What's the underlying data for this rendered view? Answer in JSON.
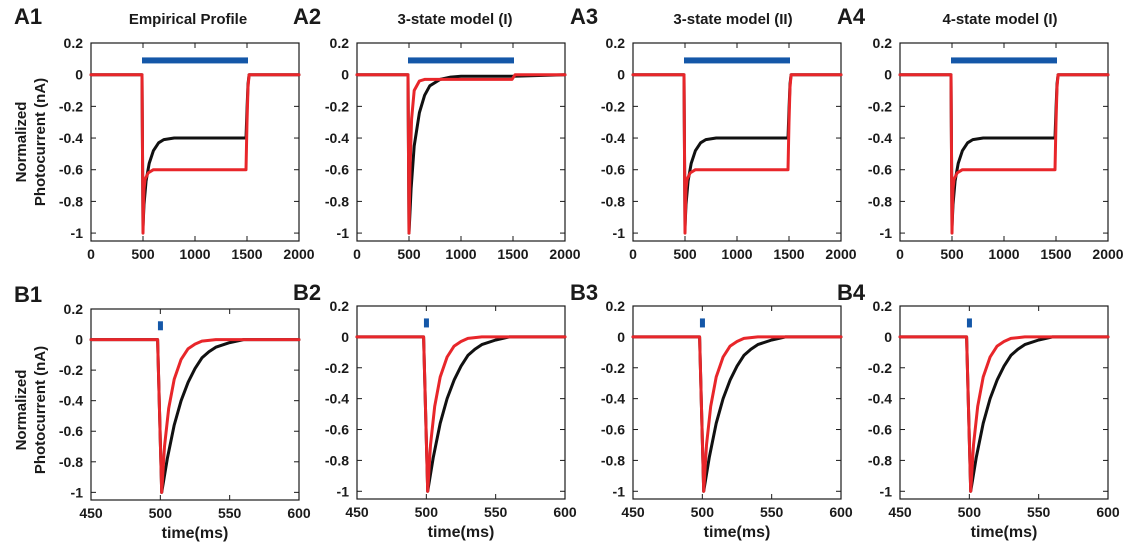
{
  "ylabel": "Normalized\nPhotocurrent (nA)",
  "xlabel": "time(ms)",
  "colors": {
    "black_trace": "#111111",
    "red_trace": "#e8262a",
    "light_pulse": "#1457a8"
  },
  "chart_data": [
    {
      "type": "line",
      "label": "A1",
      "title": "Empirical Profile",
      "xlim": [
        0,
        2000
      ],
      "ylim": [
        -1.05,
        0.2
      ],
      "xticks": [
        0,
        500,
        1000,
        1500,
        2000
      ],
      "yticks": [
        0.2,
        0,
        -0.2,
        -0.4,
        -0.6,
        -0.8,
        -1
      ],
      "light_pulse": {
        "start": 500,
        "end": 1500,
        "y": 0.09
      },
      "series": [
        {
          "color": "black",
          "x": [
            0,
            490,
            500,
            510,
            530,
            560,
            600,
            650,
            700,
            800,
            1000,
            1490,
            1500,
            1510,
            1520,
            2000
          ],
          "y": [
            0,
            0,
            -0.96,
            -0.82,
            -0.67,
            -0.56,
            -0.48,
            -0.43,
            -0.41,
            -0.4,
            -0.4,
            -0.4,
            -0.22,
            -0.06,
            0,
            0
          ]
        },
        {
          "color": "red",
          "x": [
            0,
            490,
            500,
            505,
            510,
            520,
            550,
            600,
            650,
            800,
            1490,
            1500,
            1510,
            1520,
            2000
          ],
          "y": [
            0,
            0,
            -1,
            -0.85,
            -0.72,
            -0.66,
            -0.62,
            -0.6,
            -0.6,
            -0.6,
            -0.6,
            -0.3,
            -0.08,
            0,
            0
          ]
        }
      ]
    },
    {
      "type": "line",
      "label": "A2",
      "title": "3-state model (I)",
      "xlim": [
        0,
        2000
      ],
      "ylim": [
        -1.05,
        0.2
      ],
      "xticks": [
        0,
        500,
        1000,
        1500,
        2000
      ],
      "yticks": [
        0.2,
        0,
        -0.2,
        -0.4,
        -0.6,
        -0.8,
        -1
      ],
      "light_pulse": {
        "start": 500,
        "end": 1500,
        "y": 0.09
      },
      "series": [
        {
          "color": "black",
          "x": [
            0,
            490,
            500,
            520,
            550,
            600,
            650,
            700,
            800,
            900,
            1000,
            1500,
            2000
          ],
          "y": [
            0,
            0,
            -1,
            -0.72,
            -0.45,
            -0.24,
            -0.13,
            -0.07,
            -0.03,
            -0.015,
            -0.01,
            -0.01,
            0
          ]
        },
        {
          "color": "red",
          "x": [
            0,
            490,
            500,
            510,
            525,
            550,
            600,
            650,
            700,
            1490,
            1510,
            1520,
            2000
          ],
          "y": [
            0,
            0,
            -1,
            -0.6,
            -0.28,
            -0.1,
            -0.04,
            -0.03,
            -0.03,
            -0.03,
            -0.01,
            0,
            0
          ]
        }
      ]
    },
    {
      "type": "line",
      "label": "A3",
      "title": "3-state model (II)",
      "xlim": [
        0,
        2000
      ],
      "ylim": [
        -1.05,
        0.2
      ],
      "xticks": [
        0,
        500,
        1000,
        1500,
        2000
      ],
      "yticks": [
        0.2,
        0,
        -0.2,
        -0.4,
        -0.6,
        -0.8,
        -1
      ],
      "light_pulse": {
        "start": 500,
        "end": 1500,
        "y": 0.09
      },
      "series": [
        {
          "color": "black",
          "x": [
            0,
            490,
            500,
            510,
            530,
            560,
            600,
            650,
            700,
            800,
            1000,
            1490,
            1500,
            1510,
            1520,
            2000
          ],
          "y": [
            0,
            0,
            -0.96,
            -0.82,
            -0.67,
            -0.56,
            -0.48,
            -0.43,
            -0.41,
            -0.4,
            -0.4,
            -0.4,
            -0.22,
            -0.06,
            0,
            0
          ]
        },
        {
          "color": "red",
          "x": [
            0,
            490,
            500,
            505,
            510,
            520,
            550,
            600,
            650,
            800,
            1490,
            1500,
            1510,
            1520,
            2000
          ],
          "y": [
            0,
            0,
            -1,
            -0.85,
            -0.72,
            -0.66,
            -0.62,
            -0.6,
            -0.6,
            -0.6,
            -0.6,
            -0.3,
            -0.08,
            0,
            0
          ]
        }
      ]
    },
    {
      "type": "line",
      "label": "A4",
      "title": "4-state model (I)",
      "xlim": [
        0,
        2000
      ],
      "ylim": [
        -1.05,
        0.2
      ],
      "xticks": [
        0,
        500,
        1000,
        1500,
        2000
      ],
      "yticks": [
        0.2,
        0,
        -0.2,
        -0.4,
        -0.6,
        -0.8,
        -1
      ],
      "light_pulse": {
        "start": 500,
        "end": 1500,
        "y": 0.09
      },
      "series": [
        {
          "color": "black",
          "x": [
            0,
            490,
            500,
            510,
            530,
            560,
            600,
            650,
            700,
            800,
            1000,
            1490,
            1500,
            1510,
            1520,
            2000
          ],
          "y": [
            0,
            0,
            -0.96,
            -0.82,
            -0.67,
            -0.56,
            -0.48,
            -0.43,
            -0.41,
            -0.4,
            -0.4,
            -0.4,
            -0.22,
            -0.06,
            0,
            0
          ]
        },
        {
          "color": "red",
          "x": [
            0,
            490,
            500,
            505,
            510,
            520,
            550,
            600,
            650,
            800,
            1490,
            1500,
            1510,
            1520,
            2000
          ],
          "y": [
            0,
            0,
            -1,
            -0.85,
            -0.72,
            -0.66,
            -0.62,
            -0.6,
            -0.6,
            -0.6,
            -0.6,
            -0.3,
            -0.08,
            0,
            0
          ]
        }
      ]
    },
    {
      "type": "line",
      "label": "B1",
      "title": "",
      "xlim": [
        450,
        600
      ],
      "ylim": [
        -1.05,
        0.2
      ],
      "xticks": [
        450,
        500,
        550,
        600
      ],
      "yticks": [
        0.2,
        0,
        -0.2,
        -0.4,
        -0.6,
        -0.8,
        -1
      ],
      "light_pulse": {
        "start": 499,
        "end": 501,
        "y": 0.1
      },
      "series": [
        {
          "color": "black",
          "x": [
            450,
            498,
            501,
            505,
            510,
            515,
            520,
            525,
            530,
            535,
            540,
            550,
            560,
            600
          ],
          "y": [
            0,
            0,
            -1,
            -0.78,
            -0.56,
            -0.4,
            -0.28,
            -0.19,
            -0.12,
            -0.08,
            -0.05,
            -0.02,
            0,
            0
          ]
        },
        {
          "color": "red",
          "x": [
            450,
            498,
            501,
            503,
            506,
            510,
            515,
            520,
            525,
            530,
            540,
            600
          ],
          "y": [
            0,
            0,
            -1,
            -0.7,
            -0.45,
            -0.26,
            -0.13,
            -0.06,
            -0.03,
            -0.01,
            0,
            0
          ]
        }
      ]
    },
    {
      "type": "line",
      "label": "B2",
      "title": "",
      "xlim": [
        450,
        600
      ],
      "ylim": [
        -1.05,
        0.2
      ],
      "xticks": [
        450,
        500,
        550,
        600
      ],
      "yticks": [
        0.2,
        0,
        -0.2,
        -0.4,
        -0.6,
        -0.8,
        -1
      ],
      "light_pulse": {
        "start": 499,
        "end": 501,
        "y": 0.1
      },
      "series": [
        {
          "color": "black",
          "x": [
            450,
            498,
            501,
            505,
            510,
            515,
            520,
            525,
            530,
            535,
            540,
            550,
            560,
            600
          ],
          "y": [
            0,
            0,
            -1,
            -0.78,
            -0.56,
            -0.4,
            -0.28,
            -0.19,
            -0.12,
            -0.08,
            -0.05,
            -0.02,
            0,
            0
          ]
        },
        {
          "color": "red",
          "x": [
            450,
            498,
            501,
            503,
            506,
            510,
            515,
            520,
            525,
            530,
            540,
            600
          ],
          "y": [
            0,
            0,
            -1,
            -0.7,
            -0.45,
            -0.26,
            -0.13,
            -0.06,
            -0.03,
            -0.01,
            0,
            0
          ]
        }
      ]
    },
    {
      "type": "line",
      "label": "B3",
      "title": "",
      "xlim": [
        450,
        600
      ],
      "ylim": [
        -1.05,
        0.2
      ],
      "xticks": [
        450,
        500,
        550,
        600
      ],
      "yticks": [
        0.2,
        0,
        -0.2,
        -0.4,
        -0.6,
        -0.8,
        -1
      ],
      "light_pulse": {
        "start": 499,
        "end": 501,
        "y": 0.1
      },
      "series": [
        {
          "color": "black",
          "x": [
            450,
            498,
            501,
            505,
            510,
            515,
            520,
            525,
            530,
            535,
            540,
            550,
            560,
            600
          ],
          "y": [
            0,
            0,
            -1,
            -0.78,
            -0.56,
            -0.4,
            -0.28,
            -0.19,
            -0.12,
            -0.08,
            -0.05,
            -0.02,
            0,
            0
          ]
        },
        {
          "color": "red",
          "x": [
            450,
            498,
            501,
            503,
            506,
            510,
            515,
            520,
            525,
            530,
            540,
            600
          ],
          "y": [
            0,
            0,
            -1,
            -0.7,
            -0.45,
            -0.26,
            -0.13,
            -0.06,
            -0.03,
            -0.01,
            0,
            0
          ]
        }
      ]
    },
    {
      "type": "line",
      "label": "B4",
      "title": "",
      "xlim": [
        450,
        600
      ],
      "ylim": [
        -1.05,
        0.2
      ],
      "xticks": [
        450,
        500,
        550,
        600
      ],
      "yticks": [
        0.2,
        0,
        -0.2,
        -0.4,
        -0.6,
        -0.8,
        -1
      ],
      "light_pulse": {
        "start": 499,
        "end": 501,
        "y": 0.1
      },
      "series": [
        {
          "color": "black",
          "x": [
            450,
            498,
            501,
            505,
            510,
            515,
            520,
            525,
            530,
            535,
            540,
            550,
            560,
            600
          ],
          "y": [
            0,
            0,
            -1,
            -0.78,
            -0.56,
            -0.4,
            -0.28,
            -0.19,
            -0.12,
            -0.08,
            -0.05,
            -0.02,
            0,
            0
          ]
        },
        {
          "color": "red",
          "x": [
            450,
            498,
            501,
            503,
            506,
            510,
            515,
            520,
            525,
            530,
            540,
            600
          ],
          "y": [
            0,
            0,
            -1,
            -0.7,
            -0.45,
            -0.26,
            -0.13,
            -0.06,
            -0.03,
            -0.01,
            0,
            0
          ]
        }
      ]
    }
  ]
}
